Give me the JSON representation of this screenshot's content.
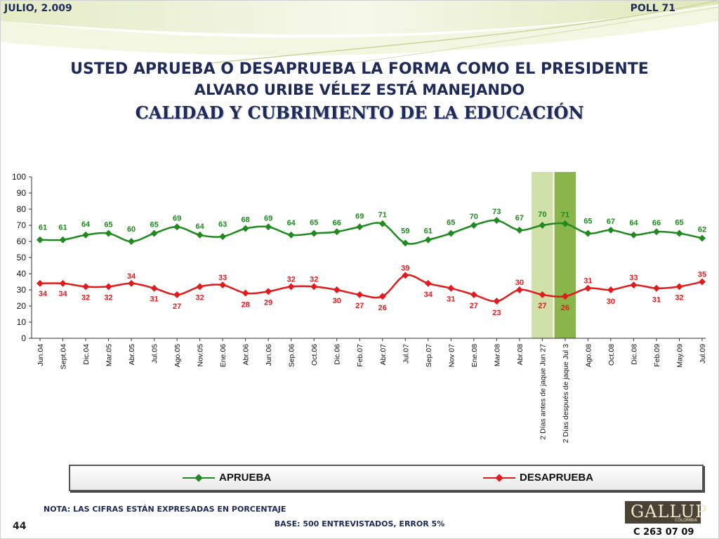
{
  "header": {
    "date": "JULIO, 2.009",
    "poll": "POLL 71"
  },
  "title": {
    "line1": "USTED APRUEBA O DESAPRUEBA LA FORMA COMO EL PRESIDENTE",
    "line2": "ALVARO URIBE VÉLEZ ESTÁ MANEJANDO",
    "line3": "CALIDAD Y CUBRIMIENTO DE LA EDUCACIÓN"
  },
  "colors": {
    "aprueba": "#1f8a1f",
    "desaprueba": "#e31a1c",
    "highlight_light": "#cfe0a8",
    "highlight_dark": "#8ab54a",
    "title": "#1e2a5a"
  },
  "chart_data": {
    "type": "line",
    "categories": [
      "Jun.04",
      "Sept.04",
      "Dic.04",
      "Mar.05",
      "Abr.05",
      "Jul.05",
      "Ago.05",
      "Nov.05",
      "Ene.06",
      "Abr.06",
      "Jun.06",
      "Sep.06",
      "Oct.06",
      "Dic.06",
      "Feb.07",
      "Abr.07",
      "Jul.07",
      "Sep.07",
      "Nov 07",
      "Ene.08",
      "Mar.08",
      "Abr.08",
      "2 Días antes de jaque Jun 27",
      "2 Días después de jaque Jul 3",
      "Ago.08",
      "Oct.08",
      "Dic.08",
      "Feb.09",
      "May.09",
      "Jul.09"
    ],
    "series": [
      {
        "name": "APRUEBA",
        "values": [
          61,
          61,
          64,
          65,
          60,
          65,
          69,
          64,
          63,
          68,
          69,
          64,
          65,
          66,
          69,
          71,
          59,
          61,
          65,
          70,
          73,
          67,
          70,
          71,
          65,
          67,
          64,
          66,
          65,
          62
        ]
      },
      {
        "name": "DESAPRUEBA",
        "values": [
          34,
          34,
          32,
          32,
          34,
          31,
          27,
          32,
          33,
          28,
          29,
          32,
          32,
          30,
          27,
          26,
          39,
          34,
          31,
          27,
          23,
          30,
          27,
          26,
          31,
          30,
          33,
          31,
          32,
          35
        ]
      }
    ],
    "ylim": [
      0,
      100
    ],
    "yticks": [
      0,
      10,
      20,
      30,
      40,
      50,
      60,
      70,
      80,
      90,
      100
    ],
    "highlighted_categories": [
      22,
      23
    ],
    "grid": false,
    "legend_position": "bottom"
  },
  "notes": {
    "nota": "NOTA: LAS CIFRAS ESTÁN EXPRESADAS EN PORCENTAJE",
    "base": "BASE: 500 ENTREVISTADOS, ERROR 5%",
    "page": "44",
    "code": "C 263 07 09"
  },
  "logo": {
    "name": "GALLUP",
    "sub": "COLOMBIA"
  }
}
